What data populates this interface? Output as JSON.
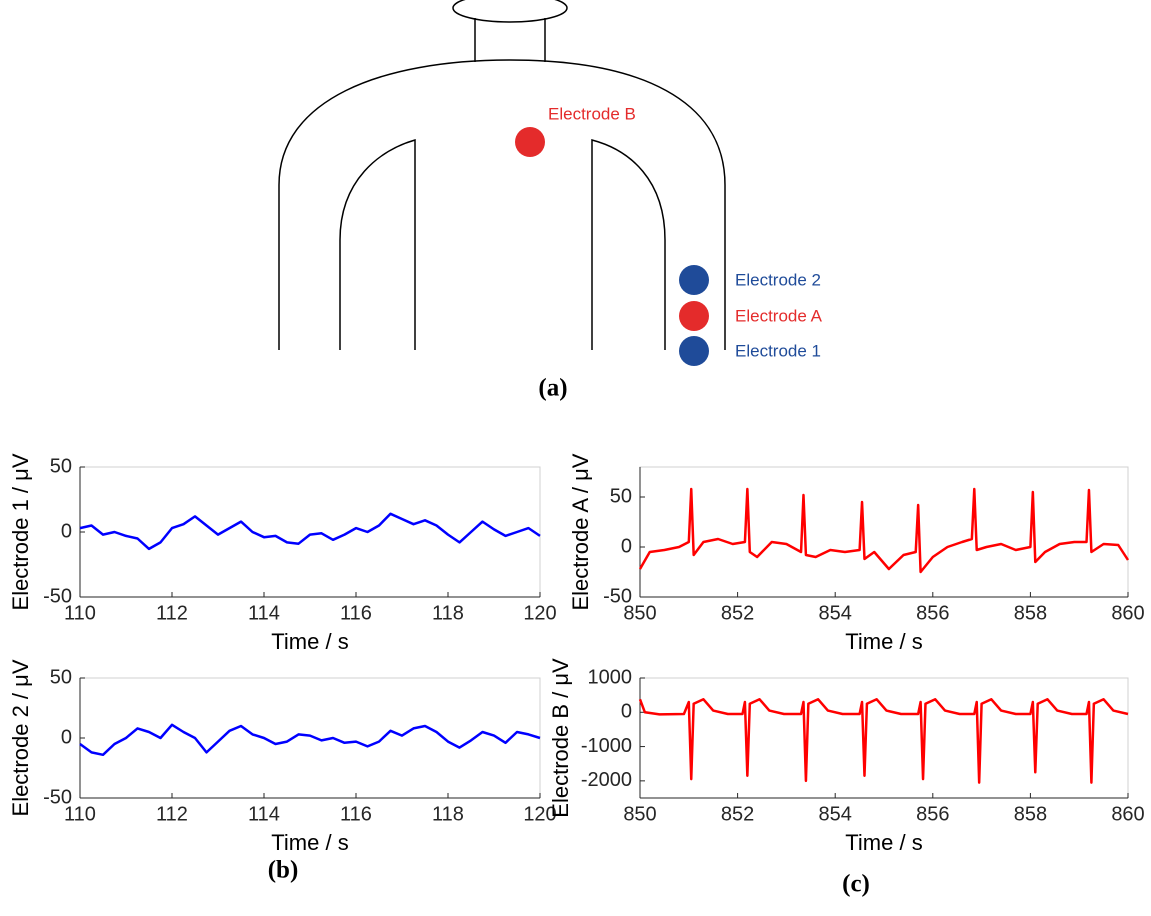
{
  "figure": {
    "electrode_labels": [
      "Electrode B",
      "Electrode 2",
      "Electrode A",
      "Electrode 1"
    ],
    "captions": [
      "(a)",
      "(b)",
      "(c)"
    ]
  },
  "chart_data": [
    {
      "type": "line",
      "xlabel": "Time / s",
      "ylabel": "Electrode 1 / μV",
      "color": "#0000ff",
      "xlim": [
        110,
        120
      ],
      "ylim": [
        -50,
        50
      ],
      "xticks": [
        110,
        112,
        114,
        116,
        118,
        120
      ],
      "yticks": [
        -50,
        0,
        50
      ],
      "x": [
        110,
        110.25,
        110.5,
        110.75,
        111,
        111.25,
        111.5,
        111.75,
        112,
        112.25,
        112.5,
        112.75,
        113,
        113.25,
        113.5,
        113.75,
        114,
        114.25,
        114.5,
        114.75,
        115,
        115.25,
        115.5,
        115.75,
        116,
        116.25,
        116.5,
        116.75,
        117,
        117.25,
        117.5,
        117.75,
        118,
        118.25,
        118.5,
        118.75,
        119,
        119.25,
        119.5,
        119.75,
        120
      ],
      "values": [
        3,
        5,
        -2,
        0,
        -3,
        -5,
        -13,
        -8,
        3,
        6,
        12,
        5,
        -2,
        3,
        8,
        0,
        -4,
        -3,
        -8,
        -9,
        -2,
        -1,
        -6,
        -2,
        3,
        0,
        5,
        14,
        10,
        6,
        9,
        5,
        -2,
        -8,
        0,
        8,
        2,
        -3,
        0,
        3,
        -3
      ]
    },
    {
      "type": "line",
      "xlabel": "Time / s",
      "ylabel": "Electrode 2 / μV",
      "color": "#0000ff",
      "xlim": [
        110,
        120
      ],
      "ylim": [
        -50,
        50
      ],
      "xticks": [
        110,
        112,
        114,
        116,
        118,
        120
      ],
      "yticks": [
        -50,
        0,
        50
      ],
      "x": [
        110,
        110.25,
        110.5,
        110.75,
        111,
        111.25,
        111.5,
        111.75,
        112,
        112.25,
        112.5,
        112.75,
        113,
        113.25,
        113.5,
        113.75,
        114,
        114.25,
        114.5,
        114.75,
        115,
        115.25,
        115.5,
        115.75,
        116,
        116.25,
        116.5,
        116.75,
        117,
        117.25,
        117.5,
        117.75,
        118,
        118.25,
        118.5,
        118.75,
        119,
        119.25,
        119.5,
        119.75,
        120
      ],
      "values": [
        -5,
        -12,
        -14,
        -5,
        0,
        8,
        5,
        0,
        11,
        5,
        0,
        -12,
        -3,
        6,
        10,
        3,
        0,
        -5,
        -3,
        3,
        2,
        -2,
        0,
        -4,
        -3,
        -7,
        -3,
        6,
        2,
        8,
        10,
        5,
        -3,
        -8,
        -2,
        5,
        2,
        -4,
        5,
        3,
        0
      ]
    },
    {
      "type": "line",
      "xlabel": "Time / s",
      "ylabel": "Electrode A / μV",
      "color": "#ff0000",
      "xlim": [
        850,
        860
      ],
      "ylim": [
        -50,
        80
      ],
      "xticks": [
        850,
        852,
        854,
        856,
        858,
        860
      ],
      "yticks": [
        -50,
        0,
        50
      ],
      "x": [
        850,
        850.2,
        850.5,
        850.8,
        851.0,
        851.05,
        851.1,
        851.3,
        851.6,
        851.9,
        852.15,
        852.2,
        852.25,
        852.4,
        852.7,
        853.0,
        853.3,
        853.35,
        853.4,
        853.6,
        853.9,
        854.2,
        854.5,
        854.55,
        854.6,
        854.8,
        855.1,
        855.4,
        855.65,
        855.7,
        855.75,
        856.0,
        856.3,
        856.6,
        856.8,
        856.85,
        856.9,
        857.1,
        857.4,
        857.7,
        858.0,
        858.05,
        858.1,
        858.3,
        858.6,
        858.9,
        859.15,
        859.2,
        859.25,
        859.5,
        859.8,
        860
      ],
      "values": [
        -22,
        -5,
        -3,
        0,
        5,
        58,
        -8,
        5,
        8,
        3,
        5,
        58,
        -5,
        -10,
        5,
        3,
        -5,
        52,
        -8,
        -10,
        -3,
        -5,
        -3,
        45,
        -12,
        -5,
        -22,
        -8,
        -5,
        42,
        -25,
        -10,
        0,
        5,
        8,
        58,
        -3,
        0,
        3,
        -3,
        0,
        55,
        -15,
        -5,
        3,
        5,
        5,
        57,
        -5,
        3,
        2,
        -13
      ]
    },
    {
      "type": "line",
      "xlabel": "Time / s",
      "ylabel": "Electrode B / μV",
      "color": "#ff0000",
      "xlim": [
        850,
        860
      ],
      "ylim": [
        -2500,
        1000
      ],
      "xticks": [
        850,
        852,
        854,
        856,
        858,
        860
      ],
      "yticks": [
        -2000,
        -1000,
        0,
        1000
      ],
      "x": [
        850,
        850.1,
        850.4,
        850.9,
        851.0,
        851.05,
        851.1,
        851.3,
        851.5,
        851.8,
        852.1,
        852.15,
        852.2,
        852.25,
        852.45,
        852.65,
        852.95,
        853.3,
        853.35,
        853.4,
        853.45,
        853.65,
        853.85,
        854.15,
        854.5,
        854.55,
        854.6,
        854.65,
        854.85,
        855.05,
        855.35,
        855.7,
        855.75,
        855.8,
        855.85,
        856.05,
        856.25,
        856.55,
        856.85,
        856.9,
        856.95,
        857.0,
        857.2,
        857.4,
        857.7,
        858.0,
        858.05,
        858.1,
        858.15,
        858.35,
        858.55,
        858.85,
        859.15,
        859.2,
        859.25,
        859.3,
        859.5,
        859.7,
        860
      ],
      "values": [
        380,
        0,
        -60,
        -50,
        300,
        -1950,
        250,
        380,
        50,
        -50,
        -50,
        300,
        -1850,
        250,
        380,
        50,
        -50,
        -50,
        300,
        -2000,
        250,
        380,
        50,
        -50,
        -50,
        300,
        -1850,
        250,
        380,
        50,
        -50,
        -50,
        300,
        -1950,
        250,
        380,
        50,
        -50,
        -50,
        300,
        -2050,
        250,
        380,
        50,
        -50,
        -50,
        300,
        -1750,
        250,
        380,
        50,
        -50,
        -50,
        300,
        -2050,
        250,
        380,
        50,
        -50
      ]
    }
  ]
}
